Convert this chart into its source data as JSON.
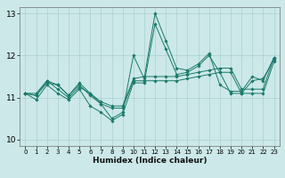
{
  "xlabel": "Humidex (Indice chaleur)",
  "background_color": "#cce8e8",
  "grid_color": "#aad0d0",
  "line_color": "#1a7a6a",
  "xlim": [
    -0.5,
    23.5
  ],
  "ylim": [
    9.85,
    13.15
  ],
  "yticks": [
    10,
    11,
    12,
    13
  ],
  "xticks": [
    0,
    1,
    2,
    3,
    4,
    5,
    6,
    7,
    8,
    9,
    10,
    11,
    12,
    13,
    14,
    15,
    16,
    17,
    18,
    19,
    20,
    21,
    22,
    23
  ],
  "s1": [
    11.1,
    11.05,
    11.4,
    11.2,
    11.0,
    11.25,
    11.1,
    10.85,
    10.5,
    10.65,
    12.0,
    11.45,
    13.0,
    12.35,
    11.7,
    11.65,
    11.8,
    12.05,
    11.3,
    11.15,
    11.15,
    11.5,
    11.4,
    11.95
  ],
  "s2": [
    11.1,
    11.1,
    11.4,
    11.3,
    11.05,
    11.35,
    11.1,
    10.9,
    10.8,
    10.8,
    11.45,
    11.5,
    11.5,
    11.5,
    11.5,
    11.55,
    11.6,
    11.65,
    11.7,
    11.7,
    11.2,
    11.2,
    11.2,
    11.95
  ],
  "s3": [
    11.1,
    11.05,
    11.35,
    11.3,
    11.05,
    11.3,
    11.05,
    10.85,
    10.75,
    10.75,
    11.4,
    11.4,
    11.4,
    11.4,
    11.4,
    11.45,
    11.5,
    11.55,
    11.6,
    11.6,
    11.1,
    11.1,
    11.1,
    11.85
  ],
  "s4": [
    11.1,
    10.95,
    11.3,
    11.1,
    10.95,
    11.2,
    10.8,
    10.65,
    10.45,
    10.6,
    11.35,
    11.35,
    12.75,
    12.15,
    11.55,
    11.6,
    11.75,
    12.0,
    11.6,
    11.1,
    11.1,
    11.4,
    11.45,
    11.9
  ]
}
